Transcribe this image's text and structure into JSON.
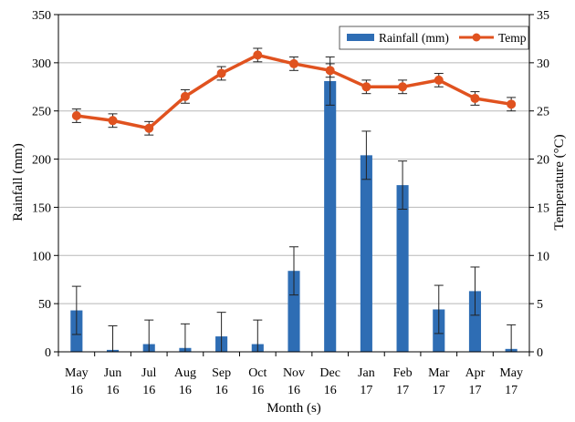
{
  "chart_data": {
    "type": "bar+line",
    "categories": [
      [
        "May",
        "16"
      ],
      [
        "Jun",
        "16"
      ],
      [
        "Jul",
        "16"
      ],
      [
        "Aug",
        "16"
      ],
      [
        "Sep",
        "16"
      ],
      [
        "Oct",
        "16"
      ],
      [
        "Nov",
        "16"
      ],
      [
        "Dec",
        "16"
      ],
      [
        "Jan",
        "17"
      ],
      [
        "Feb",
        "17"
      ],
      [
        "Mar",
        "17"
      ],
      [
        "Apr",
        "17"
      ],
      [
        "May",
        "17"
      ]
    ],
    "xlabel": "Month (s)",
    "ylabel_left": "Rainfall (mm)",
    "ylabel_right": "Temperature (°C)",
    "ylim_left": [
      0,
      350
    ],
    "yticks_left": [
      "0",
      "50",
      "100",
      "150",
      "200",
      "250",
      "300",
      "350"
    ],
    "ylim_right": [
      0,
      35
    ],
    "yticks_right": [
      "0",
      "5",
      "10",
      "15",
      "20",
      "25",
      "30",
      "35"
    ],
    "grid": "horizontal",
    "legend_position": "top-right",
    "series": [
      {
        "name": "Rainfall (mm)",
        "type": "bar",
        "axis": "left",
        "color": "#2e6db4",
        "values": [
          43,
          2,
          8,
          4,
          16,
          8,
          84,
          281,
          204,
          173,
          44,
          63,
          3
        ],
        "error": [
          25,
          25,
          25,
          25,
          25,
          25,
          25,
          25,
          25,
          25,
          25,
          25,
          25
        ]
      },
      {
        "name": "Temp",
        "type": "line",
        "axis": "right",
        "color": "#e0521f",
        "values": [
          24.5,
          24.0,
          23.2,
          26.5,
          28.9,
          30.8,
          29.9,
          29.2,
          27.5,
          27.5,
          28.2,
          26.3,
          25.7
        ],
        "error": [
          0.7,
          0.7,
          0.7,
          0.7,
          0.7,
          0.7,
          0.7,
          0.7,
          0.7,
          0.7,
          0.7,
          0.7,
          0.7
        ]
      }
    ]
  }
}
